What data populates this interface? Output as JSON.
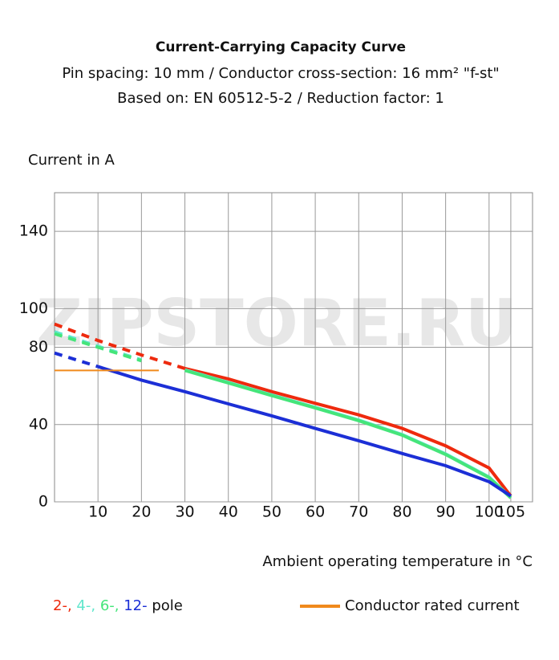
{
  "chart_data": {
    "type": "line",
    "title": "Current-Carrying Capacity Curve",
    "subtitle": [
      "Pin spacing: 10 mm / Conductor cross-section: 16 mm² \"f-st\"",
      "Based on: EN 60512-5-2 / Reduction factor: 1"
    ],
    "y_label": "Current in A",
    "x_label": "Ambient operating temperature in °C",
    "watermark": "ZIPSTORE.RU",
    "x": [
      0,
      10,
      20,
      30,
      40,
      50,
      60,
      70,
      80,
      90,
      100,
      105
    ],
    "series": [
      {
        "name": "2-,",
        "color": "#ee2a0e",
        "dashed_to": 30,
        "values": [
          92,
          83.5,
          76,
          69,
          63.6,
          57,
          51,
          45,
          38,
          29,
          17.5,
          3
        ]
      },
      {
        "name": "4-,",
        "color": "#5fe6cc",
        "dashed_to": 25,
        "values": [
          88,
          80.5,
          73.5,
          68.3,
          61.8,
          55.3,
          48.9,
          42.3,
          34.8,
          24.8,
          12.8,
          2.2
        ]
      },
      {
        "name": "6-,",
        "color": "#45e57a",
        "dashed_to": 25,
        "values": [
          87,
          80,
          73,
          68,
          61.5,
          55,
          48.6,
          42,
          34.5,
          24.5,
          12.5,
          2
        ]
      },
      {
        "name": "12-",
        "color": "#1c2fd6",
        "dashed_to": 10,
        "values": [
          77,
          70,
          63,
          57,
          50.7,
          44.5,
          38,
          31.6,
          25,
          18.7,
          10.4,
          3
        ]
      }
    ],
    "legend_suffix": "pole",
    "reference_line": {
      "name": "Conductor rated current",
      "color": "#f08a1c",
      "x": [
        0,
        24
      ],
      "values": [
        68,
        68
      ]
    },
    "xlim": [
      0,
      110
    ],
    "xticks": [
      10,
      20,
      30,
      40,
      50,
      60,
      70,
      80,
      90,
      100,
      105
    ],
    "ylim": [
      0,
      160
    ],
    "yticks": [
      0,
      40,
      80,
      100,
      140
    ],
    "grid": true
  }
}
